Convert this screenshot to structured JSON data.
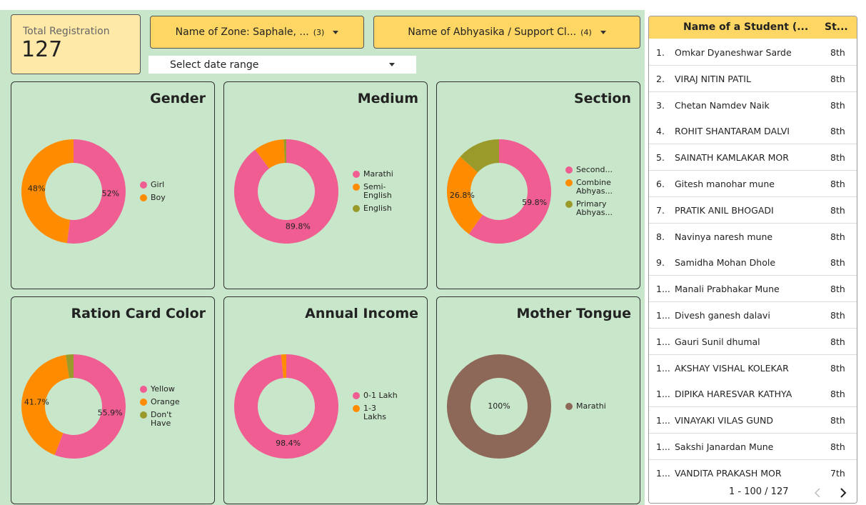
{
  "kpi": {
    "label": "Total Registration",
    "value": "127"
  },
  "filters": [
    {
      "label": "Name of Zone: Saphale, ...",
      "count": "(3)"
    },
    {
      "label": "Name of Abhyasika / Support Cl...",
      "count": "(4)"
    }
  ],
  "date_range": "Select date range",
  "chart_data": [
    {
      "type": "donut",
      "title": "Gender",
      "categories": [
        "Girl",
        "Boy"
      ],
      "values": [
        52,
        48
      ],
      "value_labels": [
        "52%",
        "48%"
      ],
      "colors": [
        "#ef5d93",
        "#ff8c00"
      ]
    },
    {
      "type": "donut",
      "title": "Medium",
      "categories": [
        "Marathi",
        "Semi-English",
        "English"
      ],
      "values": [
        89.8,
        9.4,
        0.8
      ],
      "value_labels": [
        "89.8%",
        null,
        null
      ],
      "colors": [
        "#ef5d93",
        "#ff8c00",
        "#9a9a2b"
      ]
    },
    {
      "type": "donut",
      "title": "Section",
      "categories": [
        "Second...",
        "Combine Abhyas...",
        "Primary Abhyas..."
      ],
      "values": [
        59.8,
        26.8,
        13.4
      ],
      "value_labels": [
        "59.8%",
        "26.8%",
        null
      ],
      "colors": [
        "#ef5d93",
        "#ff8c00",
        "#9a9a2b"
      ]
    },
    {
      "type": "donut",
      "title": "Ration Card Color",
      "categories": [
        "Yellow",
        "Orange",
        "Don't Have"
      ],
      "values": [
        55.9,
        41.7,
        2.4
      ],
      "value_labels": [
        "55.9%",
        "41.7%",
        null
      ],
      "colors": [
        "#ef5d93",
        "#ff8c00",
        "#9a9a2b"
      ]
    },
    {
      "type": "donut",
      "title": "Annual Income",
      "categories": [
        "0-1 Lakh",
        "1-3 Lakhs"
      ],
      "values": [
        98.4,
        1.6
      ],
      "value_labels": [
        "98.4%",
        null
      ],
      "colors": [
        "#ef5d93",
        "#ff8c00"
      ]
    },
    {
      "type": "donut",
      "title": "Mother Tongue",
      "categories": [
        "Marathi"
      ],
      "values": [
        100
      ],
      "value_labels": [
        "100%"
      ],
      "colors": [
        "#8d6758"
      ]
    }
  ],
  "table": {
    "columns": [
      "Name of a Student (...",
      "St..."
    ],
    "rows": [
      [
        "1.",
        "Omkar Dyaneshwar Sarde",
        "8th"
      ],
      [
        "2.",
        "VIRAJ NITIN PATIL",
        "8th"
      ],
      [
        "3.",
        "Chetan Namdev Naik",
        "8th"
      ],
      [
        "4.",
        "ROHIT SHANTARAM DALVI",
        "8th"
      ],
      [
        "5.",
        "SAINATH KAMLAKAR MOR",
        "8th"
      ],
      [
        "6.",
        "Gitesh manohar mune",
        "8th"
      ],
      [
        "7.",
        "PRATIK ANIL BHOGADI",
        "8th"
      ],
      [
        "8.",
        "Navinya naresh mune",
        "8th"
      ],
      [
        "9.",
        "Samidha Mohan Dhole",
        "8th"
      ],
      [
        "1...",
        "Manali Prabhakar Mune",
        "8th"
      ],
      [
        "1...",
        "Divesh ganesh dalavi",
        "8th"
      ],
      [
        "1...",
        "Gauri Sunil dhumal",
        "8th"
      ],
      [
        "1...",
        "AKSHAY VISHAL KOLEKAR",
        "8th"
      ],
      [
        "1...",
        "DIPIKA HARESVAR KATHYA",
        "8th"
      ],
      [
        "1...",
        "VINAYAKI VILAS GUND",
        "8th"
      ],
      [
        "1...",
        "Sakshi Janardan Mune",
        "8th"
      ],
      [
        "1...",
        "VANDITA PRAKASH MOR",
        "7th"
      ]
    ],
    "pagination": "1 - 100 / 127"
  }
}
